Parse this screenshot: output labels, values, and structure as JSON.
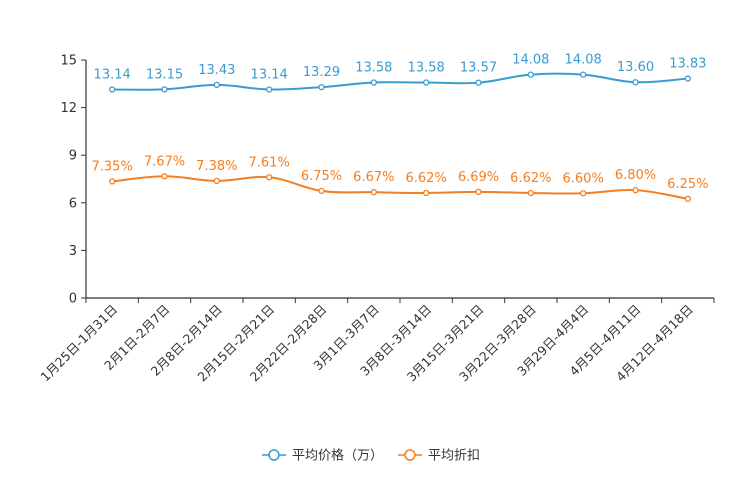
{
  "chart_data": {
    "type": "line",
    "title": "",
    "xlabel": "",
    "ylabel": "",
    "ylim": [
      0,
      15
    ],
    "yticks": [
      0,
      3,
      6,
      9,
      12,
      15
    ],
    "ytick_labels": [
      "0",
      "3",
      "6",
      "9",
      "12",
      "15"
    ],
    "grid": false,
    "legend_position": "bottom-center",
    "categories": [
      "1月25日-1月31日",
      "2月1日-2月7日",
      "2月8日-2月14日",
      "2月15日-2月21日",
      "2月22日-2月28日",
      "3月1日-3月7日",
      "3月8日-3月14日",
      "3月15日-3月21日",
      "3月22日-3月28日",
      "3月29日-4月4日",
      "4月5日-4月11日",
      "4月12日-4月18日"
    ],
    "series": [
      {
        "name": "平均价格（万）",
        "color": "#3a9bd0",
        "values": [
          13.14,
          13.15,
          13.43,
          13.14,
          13.29,
          13.58,
          13.58,
          13.57,
          14.08,
          14.08,
          13.6,
          13.83
        ],
        "labels": [
          "13.14",
          "13.15",
          "13.43",
          "13.14",
          "13.29",
          "13.58",
          "13.58",
          "13.57",
          "14.08",
          "14.08",
          "13.60",
          "13.83"
        ]
      },
      {
        "name": "平均折扣",
        "color": "#f57e1e",
        "values": [
          7.35,
          7.67,
          7.38,
          7.61,
          6.75,
          6.67,
          6.62,
          6.69,
          6.62,
          6.6,
          6.8,
          6.25
        ],
        "labels": [
          "7.35%",
          "7.67%",
          "7.38%",
          "7.61%",
          "6.75%",
          "6.67%",
          "6.62%",
          "6.69%",
          "6.62%",
          "6.60%",
          "6.80%",
          "6.25%"
        ]
      }
    ]
  }
}
